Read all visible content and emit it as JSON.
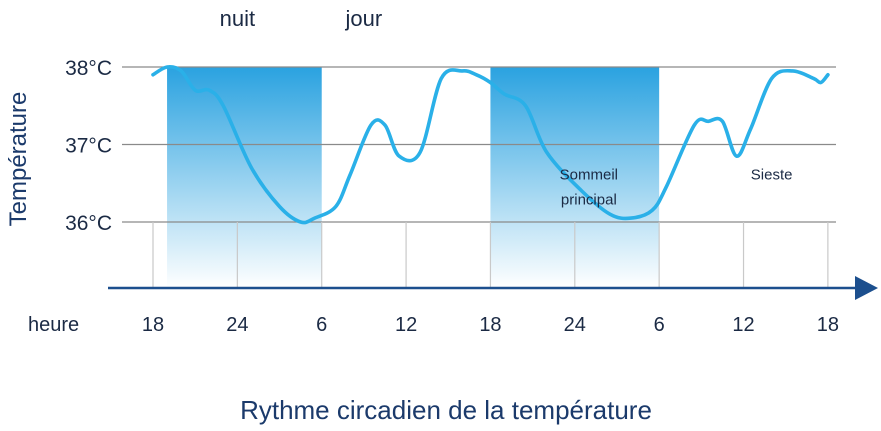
{
  "chart_data": {
    "type": "line",
    "title": "Rythme circadien de la température",
    "xlabel": "heure",
    "ylabel": "Température",
    "x_ticks": [
      "18",
      "24",
      "6",
      "12",
      "18",
      "24",
      "6",
      "12",
      "18"
    ],
    "y_ticks": [
      "38°C",
      "37°C",
      "36°C"
    ],
    "y_tick_values": [
      38,
      37,
      36
    ],
    "ylim": [
      35.2,
      38.2
    ],
    "xlim": [
      18,
      66
    ],
    "grid": "horizontal and vertical",
    "period_labels": [
      {
        "text": "nuit",
        "center_hour": 24
      },
      {
        "text": "jour",
        "center_hour": 33
      }
    ],
    "night_bands": [
      {
        "start_hour": 19,
        "end_hour": 30
      },
      {
        "start_hour": 42,
        "end_hour": 54
      }
    ],
    "annotations": [
      {
        "lines": [
          "Sommeil",
          "principal"
        ],
        "hour": 49,
        "value": 36.55
      },
      {
        "text": "Sieste",
        "hour": 62,
        "value": 36.55
      }
    ],
    "series": [
      {
        "x": [
          18,
          19,
          20,
          21,
          22,
          23,
          25,
          27,
          28.5,
          29.5,
          31,
          32,
          33.5,
          34.5,
          35.5,
          37,
          38.5,
          40,
          41,
          42,
          43,
          44.5,
          46,
          48.5,
          50.5,
          52,
          53.5,
          54.5,
          56.5,
          57.5,
          58.5,
          59.5,
          60.5,
          62,
          63.5,
          65,
          65.5,
          66
        ],
        "y": [
          37.9,
          38.0,
          37.95,
          37.7,
          37.7,
          37.5,
          36.7,
          36.2,
          36.0,
          36.05,
          36.2,
          36.6,
          37.25,
          37.25,
          36.85,
          36.9,
          37.85,
          37.95,
          37.9,
          37.8,
          37.65,
          37.5,
          36.9,
          36.4,
          36.1,
          36.05,
          36.15,
          36.45,
          37.25,
          37.3,
          37.3,
          36.85,
          37.2,
          37.85,
          37.95,
          37.85,
          37.8,
          37.9
        ]
      }
    ],
    "colors": {
      "line": "#2ab0e8",
      "band_top": "#2aa2e0",
      "band_bottom": "#ffffff",
      "grid": "#8a8a8a",
      "axis": "#1c4f8e",
      "text": "#1b2a44",
      "title": "#1b3a6b"
    }
  }
}
